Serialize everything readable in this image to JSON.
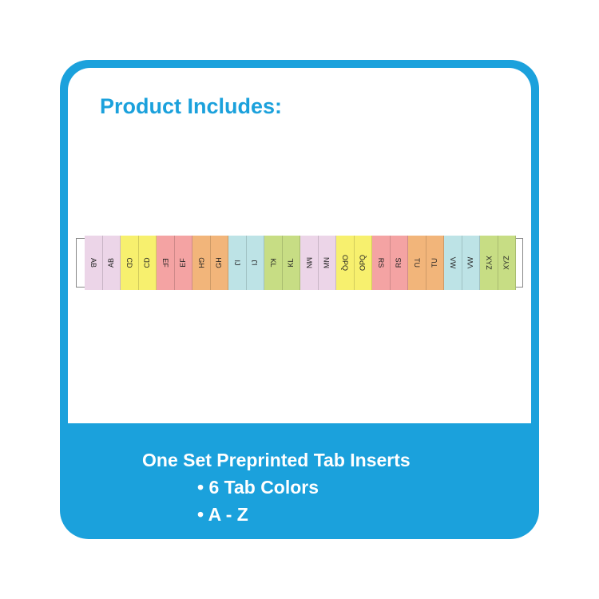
{
  "title": "Product Includes:",
  "tabs": [
    {
      "label": "AB",
      "color": "#ecd5e8"
    },
    {
      "label": "AB",
      "color": "#ecd5e8"
    },
    {
      "label": "CD",
      "color": "#f7f06e"
    },
    {
      "label": "CD",
      "color": "#f7f06e"
    },
    {
      "label": "EF",
      "color": "#f4a3a3"
    },
    {
      "label": "EF",
      "color": "#f4a3a3"
    },
    {
      "label": "GH",
      "color": "#f2b57a"
    },
    {
      "label": "GH",
      "color": "#f2b57a"
    },
    {
      "label": "IJ",
      "color": "#bde3e6"
    },
    {
      "label": "IJ",
      "color": "#bde3e6"
    },
    {
      "label": "KL",
      "color": "#c7dd84"
    },
    {
      "label": "KL",
      "color": "#c7dd84"
    },
    {
      "label": "MN",
      "color": "#ecd5e8"
    },
    {
      "label": "MN",
      "color": "#ecd5e8"
    },
    {
      "label": "OPQ",
      "color": "#f7f06e"
    },
    {
      "label": "OPQ",
      "color": "#f7f06e"
    },
    {
      "label": "RS",
      "color": "#f4a3a3"
    },
    {
      "label": "RS",
      "color": "#f4a3a3"
    },
    {
      "label": "TU",
      "color": "#f2b57a"
    },
    {
      "label": "TU",
      "color": "#f2b57a"
    },
    {
      "label": "VW",
      "color": "#bde3e6"
    },
    {
      "label": "VW",
      "color": "#bde3e6"
    },
    {
      "label": "XYZ",
      "color": "#c7dd84"
    },
    {
      "label": "XYZ",
      "color": "#c7dd84"
    }
  ],
  "footer": {
    "line1": "One Set Preprinted Tab Inserts",
    "line2": "• 6 Tab Colors",
    "line3": "• A - Z"
  },
  "colors": {
    "brand": "#1ba1dc"
  }
}
